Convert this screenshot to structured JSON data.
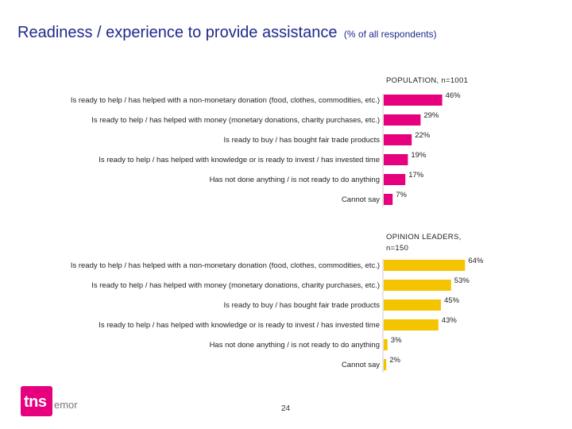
{
  "title": {
    "main": "Readiness / experience to provide assistance",
    "sub": "(% of all respondents)"
  },
  "colors": {
    "population_bar": "#e6007e",
    "leaders_bar": "#f5c400",
    "title": "#1f2a8c"
  },
  "chart_data": [
    {
      "type": "bar",
      "orientation": "horizontal",
      "title": "POPULATION, n=1001",
      "categories": [
        "Is ready to help / has helped with a non-monetary donation (food, clothes, commodities, etc.)",
        "Is ready to help / has helped with money (monetary donations, charity purchases, etc.)",
        "Is ready to buy / has bought fair trade products",
        "Is ready to help / has helped with knowledge or is ready to invest / has invested time",
        "Has not done anything / is not ready to do anything",
        "Cannot say"
      ],
      "values": [
        46,
        29,
        22,
        19,
        17,
        7
      ],
      "value_labels": [
        "46%",
        "29%",
        "22%",
        "19%",
        "17%",
        "7%"
      ],
      "unit": "%",
      "xlim": [
        0,
        100
      ]
    },
    {
      "type": "bar",
      "orientation": "horizontal",
      "title": "OPINION LEADERS, n=150",
      "categories": [
        "Is ready to help / has helped with a non-monetary donation (food, clothes, commodities, etc.)",
        "Is ready to help / has helped with money (monetary donations, charity purchases, etc.)",
        "Is ready to buy / has bought fair trade products",
        "Is ready to help / has helped with knowledge or is ready to invest / has invested time",
        "Has not done anything / is not ready to do anything",
        "Cannot say"
      ],
      "values": [
        64,
        53,
        45,
        43,
        3,
        2
      ],
      "value_labels": [
        "64%",
        "53%",
        "45%",
        "43%",
        "3%",
        "2%"
      ],
      "unit": "%",
      "xlim": [
        0,
        100
      ]
    }
  ],
  "logo": {
    "brand_left": "tns",
    "brand_right": "emor"
  },
  "page_number": "24"
}
